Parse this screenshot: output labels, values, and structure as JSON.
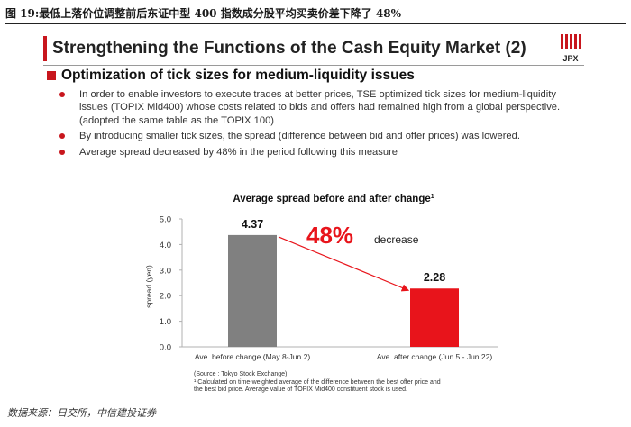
{
  "figure": {
    "caption": "图 19:最低上落价位调整前后东证中型 400 指数成分股平均买卖价差下降了 48%",
    "source": "数据来源：日交所，中信建投证券"
  },
  "slide": {
    "title": "Strengthening the Functions of the Cash Equity Market (2)",
    "logo_text": "JPX",
    "section_title": "Optimization of tick sizes for medium-liquidity issues",
    "bullets": [
      "In order to enable investors to execute trades at better prices, TSE optimized tick sizes for medium-liquidity issues (TOPIX Mid400) whose costs related to bids and offers had remained high from a global perspective. (adopted the same table as the TOPIX 100)",
      "By introducing smaller tick sizes, the spread (difference between bid and offer prices) was lowered.",
      "Average spread decreased by 48% in the period following this measure"
    ],
    "footnote_source": "(Source : Tokyo Stock Exchange)",
    "footnote_1a": "¹ Calculated on time-weighted average of the difference between the best offer price and",
    "footnote_1b": "the best bid price. Average value of TOPIX Mid400 constituent stock is used."
  },
  "colors": {
    "accent": "#c8161d",
    "bar_before": "#808080",
    "bar_after": "#e8141b",
    "callout": "#e8141b"
  },
  "chart_data": {
    "type": "bar",
    "title": "Average spread before and after change",
    "title_superscript": "1",
    "categories": [
      "Ave. before change (May 8-Jun 2)",
      "Ave. after change (Jun 5 - Jun 22)"
    ],
    "values": [
      4.37,
      2.28
    ],
    "value_labels": [
      "4.37",
      "2.28"
    ],
    "xlabel": "",
    "ylabel": "spread (yen)",
    "ylim": [
      0,
      5.0
    ],
    "yticks": [
      "0.0",
      "1.0",
      "2.0",
      "3.0",
      "4.0",
      "5.0"
    ],
    "grid": false,
    "annotation": {
      "percent": "48%",
      "word": "decrease"
    }
  }
}
